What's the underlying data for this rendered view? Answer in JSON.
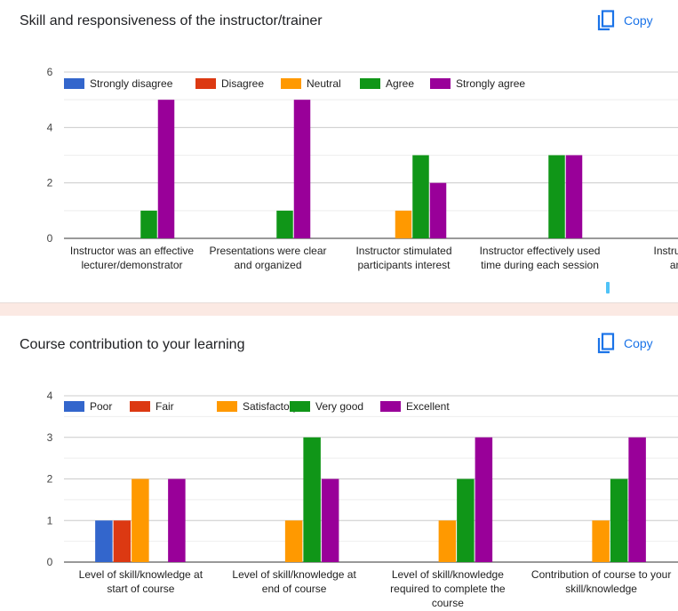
{
  "colors": {
    "blue": "#3366cc",
    "red": "#dc3912",
    "orange": "#ff9900",
    "green": "#109618",
    "purple": "#990099"
  },
  "copy_icon": "copy-icon",
  "chart_data": [
    {
      "type": "bar",
      "title": "Skill and responsiveness of the instructor/trainer",
      "copy_label": "Copy",
      "ylim": [
        0,
        6
      ],
      "yticks": [
        "0",
        "2",
        "4",
        "6"
      ],
      "grid": true,
      "legend_position": "top",
      "categories": [
        [
          "Instructor was an effective",
          "lecturer/demonstrator"
        ],
        [
          "Presentations were clear",
          "and organized"
        ],
        [
          "Instructor stimulated",
          "participants interest"
        ],
        [
          "Instructor effectively used",
          "time during each session"
        ],
        [
          "Instructor",
          "an"
        ]
      ],
      "series": [
        {
          "name": "Strongly disagree",
          "color": "#3366cc",
          "values": [
            0,
            0,
            0,
            0,
            null
          ]
        },
        {
          "name": "Disagree",
          "color": "#dc3912",
          "values": [
            0,
            0,
            0,
            0,
            null
          ]
        },
        {
          "name": "Neutral",
          "color": "#ff9900",
          "values": [
            0,
            0,
            1,
            0,
            null
          ]
        },
        {
          "name": "Agree",
          "color": "#109618",
          "values": [
            1,
            1,
            3,
            3,
            null
          ]
        },
        {
          "name": "Strongly agree",
          "color": "#990099",
          "values": [
            5,
            5,
            2,
            3,
            null
          ]
        }
      ]
    },
    {
      "type": "bar",
      "title": "Course contribution to your learning",
      "copy_label": "Copy",
      "ylim": [
        0,
        4
      ],
      "yticks": [
        "0",
        "1",
        "2",
        "3",
        "4"
      ],
      "grid": true,
      "legend_position": "top",
      "categories": [
        [
          "Level of skill/knowledge at",
          "start of course"
        ],
        [
          "Level of skill/knowledge at",
          "end of course"
        ],
        [
          "Level of skill/knowledge",
          "required to complete the",
          "course"
        ],
        [
          "Contribution of course to your",
          "skill/knowledge"
        ]
      ],
      "series": [
        {
          "name": "Poor",
          "color": "#3366cc",
          "values": [
            1,
            0,
            0,
            0
          ]
        },
        {
          "name": "Fair",
          "color": "#dc3912",
          "values": [
            1,
            0,
            0,
            0
          ]
        },
        {
          "name": "Satisfactory",
          "color": "#ff9900",
          "values": [
            2,
            1,
            1,
            1
          ]
        },
        {
          "name": "Very good",
          "color": "#109618",
          "values": [
            0,
            3,
            2,
            2
          ]
        },
        {
          "name": "Excellent",
          "color": "#990099",
          "values": [
            2,
            2,
            3,
            3
          ]
        }
      ]
    }
  ]
}
